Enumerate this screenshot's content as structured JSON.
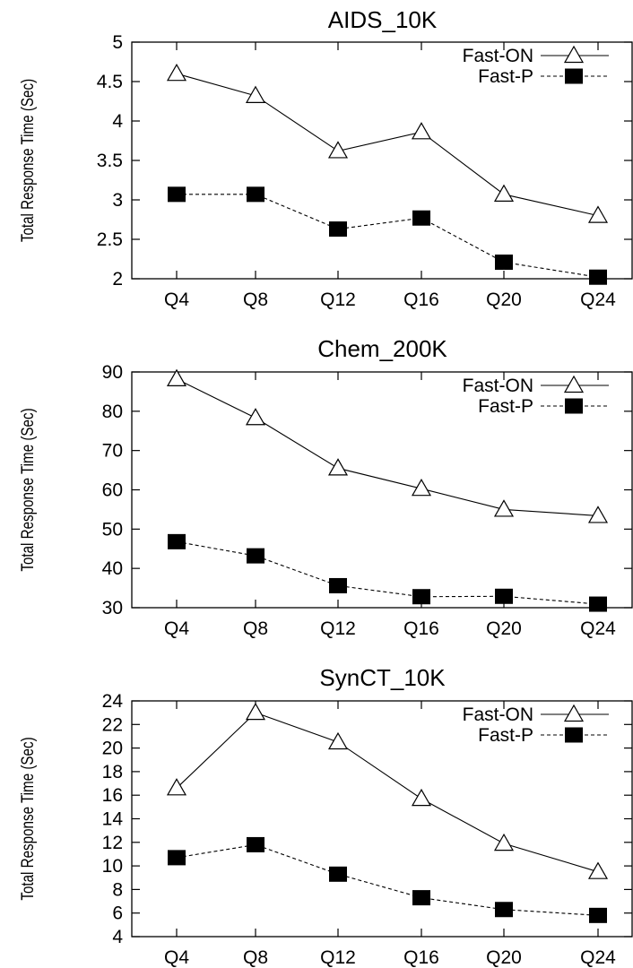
{
  "chart_data": [
    {
      "type": "line",
      "title": "AIDS_10K",
      "xlabel": "",
      "ylabel": "Total Response Time (Sec)",
      "categories": [
        "Q4",
        "Q8",
        "Q12",
        "Q16",
        "Q20",
        "Q24"
      ],
      "ylim": [
        2,
        5
      ],
      "yticks": [
        "2",
        "2.5",
        "3",
        "3.5",
        "4",
        "4.5",
        "5"
      ],
      "grid": false,
      "legend": "top-right",
      "series": [
        {
          "name": "Fast-ON",
          "marker": "open-triangle",
          "line": "solid",
          "values": [
            4.6,
            4.32,
            3.62,
            3.86,
            3.07,
            2.8
          ]
        },
        {
          "name": "Fast-P",
          "marker": "filled-square",
          "line": "dashed",
          "values": [
            3.07,
            3.07,
            2.63,
            2.77,
            2.21,
            2.02
          ]
        }
      ]
    },
    {
      "type": "line",
      "title": "Chem_200K",
      "xlabel": "",
      "ylabel": "Total Response Time (Sec)",
      "categories": [
        "Q4",
        "Q8",
        "Q12",
        "Q16",
        "Q20",
        "Q24"
      ],
      "ylim": [
        30,
        90
      ],
      "yticks": [
        "30",
        "40",
        "50",
        "60",
        "70",
        "80",
        "90"
      ],
      "grid": false,
      "legend": "top-right",
      "series": [
        {
          "name": "Fast-ON",
          "marker": "open-triangle",
          "line": "solid",
          "values": [
            88.2,
            78.3,
            65.5,
            60.3,
            55.0,
            53.4
          ]
        },
        {
          "name": "Fast-P",
          "marker": "filled-square",
          "line": "dashed",
          "values": [
            46.8,
            43.2,
            35.6,
            32.8,
            32.9,
            30.9
          ]
        }
      ]
    },
    {
      "type": "line",
      "title": "SynCT_10K",
      "xlabel": "",
      "ylabel": "Total Response Time (Sec)",
      "categories": [
        "Q4",
        "Q8",
        "Q12",
        "Q16",
        "Q20",
        "Q24"
      ],
      "ylim": [
        4,
        24
      ],
      "yticks": [
        "4",
        "6",
        "8",
        "10",
        "12",
        "14",
        "16",
        "18",
        "20",
        "22",
        "24"
      ],
      "grid": false,
      "legend": "top-right",
      "series": [
        {
          "name": "Fast-ON",
          "marker": "open-triangle",
          "line": "solid",
          "values": [
            16.6,
            23.0,
            20.5,
            15.7,
            11.9,
            9.5
          ]
        },
        {
          "name": "Fast-P",
          "marker": "filled-square",
          "line": "dashed",
          "values": [
            10.7,
            11.8,
            9.3,
            7.3,
            6.3,
            5.8
          ]
        }
      ]
    }
  ]
}
